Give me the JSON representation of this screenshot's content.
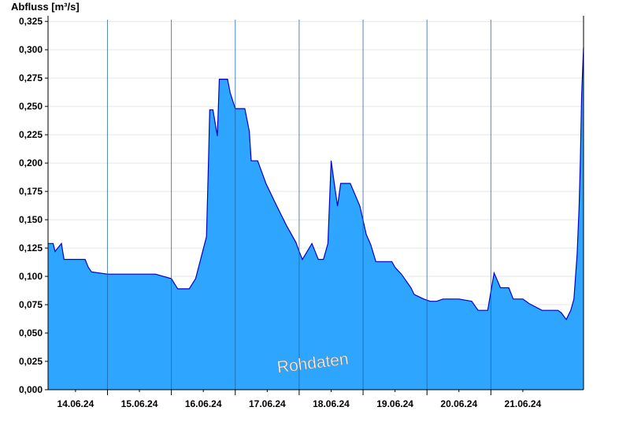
{
  "chart_data": {
    "type": "area",
    "title": "",
    "ylabel": "Abfluss [m³/s]",
    "xlabel": "",
    "watermark": "Rohdaten",
    "ylim": [
      0,
      0.33
    ],
    "xlim": [
      13.57,
      21.95
    ],
    "grid": true,
    "colors": {
      "fill": "#2ea6ff",
      "line": "#0000cc",
      "grid": "#e6e6e6",
      "day_line": "#1a5fa0"
    },
    "yticks": [
      "0,000",
      "0,025",
      "0,050",
      "0,075",
      "0,100",
      "0,125",
      "0,150",
      "0,175",
      "0,200",
      "0,225",
      "0,250",
      "0,275",
      "0,300",
      "0,325"
    ],
    "ytick_values": [
      0,
      0.025,
      0.05,
      0.075,
      0.1,
      0.125,
      0.15,
      0.175,
      0.2,
      0.225,
      0.25,
      0.275,
      0.3,
      0.325
    ],
    "xticks": [
      "14.06.24",
      "15.06.24",
      "16.06.24",
      "17.06.24",
      "18.06.24",
      "19.06.24",
      "20.06.24",
      "21.06.24"
    ],
    "xtick_values": [
      14,
      15,
      16,
      17,
      18,
      19,
      20,
      21
    ],
    "day_boundaries": [
      14.5,
      15.5,
      16.5,
      17.5,
      18.5,
      19.5,
      20.5
    ],
    "series": [
      {
        "x": [
          13.57,
          13.65,
          13.68,
          13.78,
          13.82,
          14.05,
          14.15,
          14.2,
          14.25,
          14.5,
          14.55,
          15.0,
          15.25,
          15.5,
          15.6,
          15.68,
          15.75,
          15.78,
          15.8,
          15.88,
          16.05,
          16.08,
          16.1,
          16.15,
          16.22,
          16.25,
          16.38,
          16.42,
          16.5,
          16.65,
          16.72,
          16.75,
          16.85,
          16.98,
          17.15,
          17.3,
          17.45,
          17.5,
          17.55,
          17.7,
          17.8,
          17.88,
          17.95,
          18.0,
          18.05,
          18.1,
          18.15,
          18.2,
          18.3,
          18.45,
          18.55,
          18.62,
          18.7,
          18.8,
          18.95,
          19.0,
          19.1,
          19.25,
          19.3,
          19.45,
          19.55,
          19.65,
          19.75,
          19.85,
          20.0,
          20.2,
          20.3,
          20.4,
          20.45,
          20.55,
          20.65,
          20.72,
          20.78,
          20.85,
          20.95,
          21.0,
          21.1,
          21.3,
          21.45,
          21.55,
          21.6,
          21.68,
          21.75,
          21.8,
          21.85,
          21.88,
          21.9,
          21.92,
          21.95
        ],
        "values": [
          0.129,
          0.129,
          0.122,
          0.129,
          0.115,
          0.115,
          0.115,
          0.108,
          0.104,
          0.102,
          0.102,
          0.102,
          0.102,
          0.098,
          0.089,
          0.089,
          0.089,
          0.089,
          0.091,
          0.098,
          0.135,
          0.2,
          0.247,
          0.247,
          0.224,
          0.274,
          0.274,
          0.262,
          0.248,
          0.248,
          0.228,
          0.202,
          0.202,
          0.182,
          0.162,
          0.145,
          0.13,
          0.122,
          0.115,
          0.129,
          0.115,
          0.115,
          0.129,
          0.202,
          0.182,
          0.162,
          0.182,
          0.182,
          0.182,
          0.162,
          0.137,
          0.128,
          0.113,
          0.113,
          0.113,
          0.108,
          0.102,
          0.09,
          0.084,
          0.08,
          0.078,
          0.078,
          0.08,
          0.08,
          0.08,
          0.078,
          0.07,
          0.07,
          0.07,
          0.103,
          0.09,
          0.09,
          0.09,
          0.08,
          0.08,
          0.08,
          0.076,
          0.07,
          0.07,
          0.07,
          0.068,
          0.062,
          0.07,
          0.08,
          0.12,
          0.16,
          0.2,
          0.26,
          0.302
        ]
      }
    ]
  }
}
